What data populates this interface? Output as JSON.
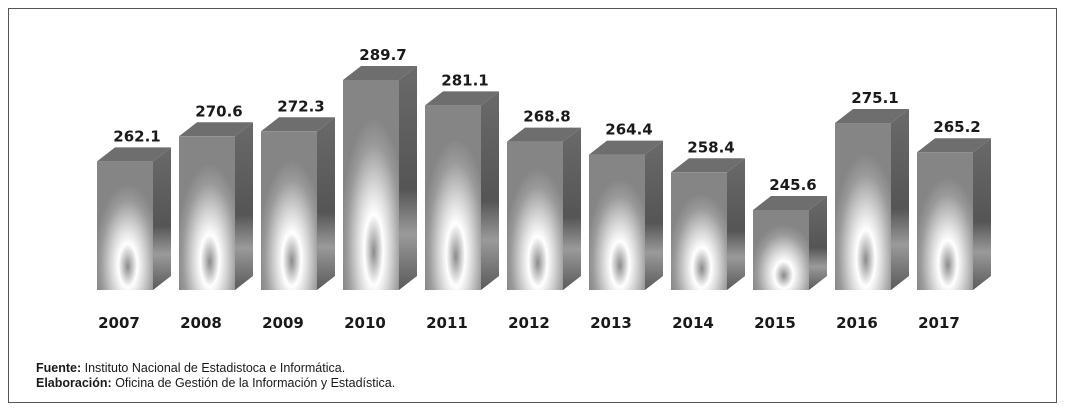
{
  "chart_data": {
    "type": "bar",
    "style": "3d",
    "categories": [
      "2007",
      "2008",
      "2009",
      "2010",
      "2011",
      "2012",
      "2013",
      "2014",
      "2015",
      "2016",
      "2017"
    ],
    "values": [
      262.1,
      270.6,
      272.3,
      289.7,
      281.1,
      268.8,
      264.4,
      258.4,
      245.6,
      275.1,
      265.2
    ],
    "value_labels": [
      "262.1",
      "270.6",
      "272.3",
      "289.7",
      "281.1",
      "268.8",
      "264.4",
      "258.4",
      "245.6",
      "275.1",
      "265.2"
    ],
    "title": "",
    "xlabel": "",
    "ylabel": "",
    "grid": false,
    "legend": "none"
  },
  "notes": {
    "source_label": "Fuente:",
    "source_text": " Instituto Nacional de Estadistoca e Informática.",
    "prepared_label": "Elaboración:",
    "prepared_text": " Oficina de Gestión de la Información y Estadística."
  },
  "colors": {
    "bar_front": "#8a8a8a",
    "bar_highlight": "#ffffff",
    "bar_side": "#5f5f5f",
    "bar_top": "#6e6e6e",
    "label_text": "#1a1a1a"
  }
}
